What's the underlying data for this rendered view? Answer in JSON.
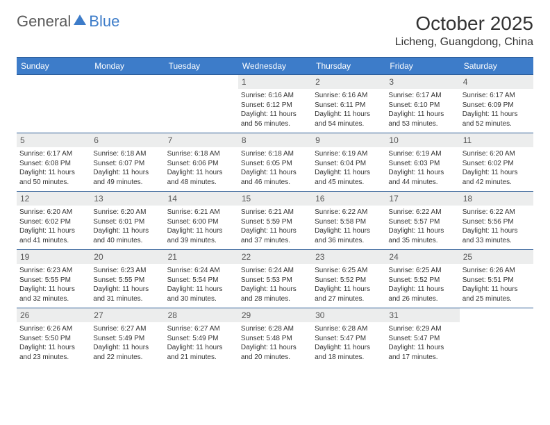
{
  "brand": {
    "part1": "General",
    "part2": "Blue"
  },
  "title": "October 2025",
  "location": "Licheng, Guangdong, China",
  "colors": {
    "header_bg": "#3d7cc9",
    "header_border": "#2a5a94",
    "daynum_bg": "#eceded",
    "text": "#333333",
    "logo_gray": "#5a5a5a",
    "logo_blue": "#3d7cc9"
  },
  "layout": {
    "columns": 7,
    "rows": 5,
    "first_weekday_index": 3
  },
  "weekdays": [
    "Sunday",
    "Monday",
    "Tuesday",
    "Wednesday",
    "Thursday",
    "Friday",
    "Saturday"
  ],
  "days": [
    {
      "n": 1,
      "sr": "6:16 AM",
      "ss": "6:12 PM",
      "h": 11,
      "m": 56
    },
    {
      "n": 2,
      "sr": "6:16 AM",
      "ss": "6:11 PM",
      "h": 11,
      "m": 54
    },
    {
      "n": 3,
      "sr": "6:17 AM",
      "ss": "6:10 PM",
      "h": 11,
      "m": 53
    },
    {
      "n": 4,
      "sr": "6:17 AM",
      "ss": "6:09 PM",
      "h": 11,
      "m": 52
    },
    {
      "n": 5,
      "sr": "6:17 AM",
      "ss": "6:08 PM",
      "h": 11,
      "m": 50
    },
    {
      "n": 6,
      "sr": "6:18 AM",
      "ss": "6:07 PM",
      "h": 11,
      "m": 49
    },
    {
      "n": 7,
      "sr": "6:18 AM",
      "ss": "6:06 PM",
      "h": 11,
      "m": 48
    },
    {
      "n": 8,
      "sr": "6:18 AM",
      "ss": "6:05 PM",
      "h": 11,
      "m": 46
    },
    {
      "n": 9,
      "sr": "6:19 AM",
      "ss": "6:04 PM",
      "h": 11,
      "m": 45
    },
    {
      "n": 10,
      "sr": "6:19 AM",
      "ss": "6:03 PM",
      "h": 11,
      "m": 44
    },
    {
      "n": 11,
      "sr": "6:20 AM",
      "ss": "6:02 PM",
      "h": 11,
      "m": 42
    },
    {
      "n": 12,
      "sr": "6:20 AM",
      "ss": "6:02 PM",
      "h": 11,
      "m": 41
    },
    {
      "n": 13,
      "sr": "6:20 AM",
      "ss": "6:01 PM",
      "h": 11,
      "m": 40
    },
    {
      "n": 14,
      "sr": "6:21 AM",
      "ss": "6:00 PM",
      "h": 11,
      "m": 39
    },
    {
      "n": 15,
      "sr": "6:21 AM",
      "ss": "5:59 PM",
      "h": 11,
      "m": 37
    },
    {
      "n": 16,
      "sr": "6:22 AM",
      "ss": "5:58 PM",
      "h": 11,
      "m": 36
    },
    {
      "n": 17,
      "sr": "6:22 AM",
      "ss": "5:57 PM",
      "h": 11,
      "m": 35
    },
    {
      "n": 18,
      "sr": "6:22 AM",
      "ss": "5:56 PM",
      "h": 11,
      "m": 33
    },
    {
      "n": 19,
      "sr": "6:23 AM",
      "ss": "5:55 PM",
      "h": 11,
      "m": 32
    },
    {
      "n": 20,
      "sr": "6:23 AM",
      "ss": "5:55 PM",
      "h": 11,
      "m": 31
    },
    {
      "n": 21,
      "sr": "6:24 AM",
      "ss": "5:54 PM",
      "h": 11,
      "m": 30
    },
    {
      "n": 22,
      "sr": "6:24 AM",
      "ss": "5:53 PM",
      "h": 11,
      "m": 28
    },
    {
      "n": 23,
      "sr": "6:25 AM",
      "ss": "5:52 PM",
      "h": 11,
      "m": 27
    },
    {
      "n": 24,
      "sr": "6:25 AM",
      "ss": "5:52 PM",
      "h": 11,
      "m": 26
    },
    {
      "n": 25,
      "sr": "6:26 AM",
      "ss": "5:51 PM",
      "h": 11,
      "m": 25
    },
    {
      "n": 26,
      "sr": "6:26 AM",
      "ss": "5:50 PM",
      "h": 11,
      "m": 23
    },
    {
      "n": 27,
      "sr": "6:27 AM",
      "ss": "5:49 PM",
      "h": 11,
      "m": 22
    },
    {
      "n": 28,
      "sr": "6:27 AM",
      "ss": "5:49 PM",
      "h": 11,
      "m": 21
    },
    {
      "n": 29,
      "sr": "6:28 AM",
      "ss": "5:48 PM",
      "h": 11,
      "m": 20
    },
    {
      "n": 30,
      "sr": "6:28 AM",
      "ss": "5:47 PM",
      "h": 11,
      "m": 18
    },
    {
      "n": 31,
      "sr": "6:29 AM",
      "ss": "5:47 PM",
      "h": 11,
      "m": 17
    }
  ],
  "labels": {
    "sunrise": "Sunrise:",
    "sunset": "Sunset:",
    "daylight": "Daylight:",
    "hours_word": "hours",
    "and_word": "and",
    "minutes_word": "minutes."
  }
}
